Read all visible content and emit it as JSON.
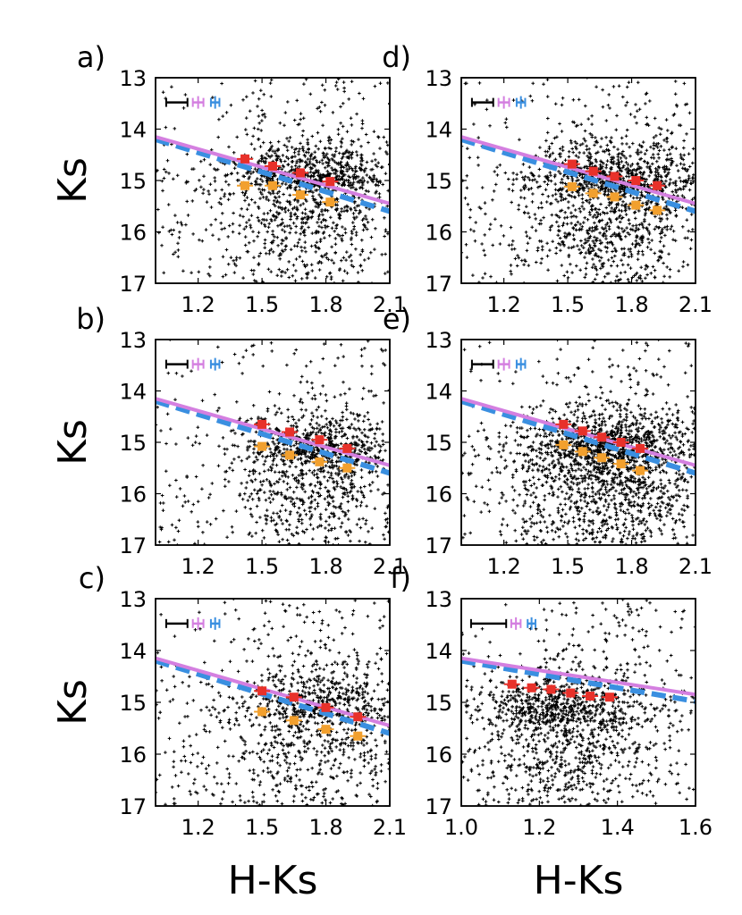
{
  "figure": {
    "xlabel": "H-Ks",
    "ylabel": "Ks",
    "colors": {
      "background_stars": "#000000",
      "solid_line": "#d47fe0",
      "dashed_line": "#3a8fe0",
      "upper_points": "#e8312a",
      "lower_points": "#f2a02e"
    }
  },
  "chart_data": [
    {
      "type": "scatter",
      "panel": "a)",
      "xlim": [
        1.0,
        2.1
      ],
      "ylim": [
        17,
        13
      ],
      "xticks": [
        "1.2",
        "1.5",
        "1.8",
        "2.1"
      ],
      "xtick_values": [
        1.2,
        1.5,
        1.8,
        2.1
      ],
      "yticks": [
        "13",
        "14",
        "15",
        "16",
        "17"
      ],
      "ytick_values": [
        13,
        14,
        15,
        16,
        17
      ],
      "show_x_title": false,
      "show_y_title": true,
      "solid_line": [
        [
          1.0,
          14.15
        ],
        [
          2.1,
          15.45
        ]
      ],
      "dashed_line": [
        [
          1.0,
          14.2
        ],
        [
          2.1,
          15.6
        ]
      ],
      "upper_points": {
        "x": [
          1.42,
          1.55,
          1.68,
          1.82
        ],
        "y": [
          14.58,
          14.72,
          14.85,
          15.02
        ]
      },
      "lower_points": {
        "x": [
          1.42,
          1.55,
          1.68,
          1.82
        ],
        "y": [
          15.1,
          15.1,
          15.28,
          15.42
        ]
      },
      "error_bars": [
        {
          "x": 1.1,
          "half_width": 0.05
        },
        {
          "x": 1.2,
          "half_width": 0.025
        },
        {
          "x": 1.28,
          "half_width": 0.02
        }
      ],
      "cloud": {
        "cx": 1.72,
        "cy": 15.1,
        "sx": 0.2,
        "sy": 0.7,
        "n": 1100,
        "n_bg": 350
      }
    },
    {
      "type": "scatter",
      "panel": "d)",
      "xlim": [
        1.0,
        2.1
      ],
      "ylim": [
        17,
        13
      ],
      "xticks": [
        "1.2",
        "1.5",
        "1.8",
        "2.1"
      ],
      "xtick_values": [
        1.2,
        1.5,
        1.8,
        2.1
      ],
      "yticks": [
        "13",
        "14",
        "15",
        "16",
        "17"
      ],
      "ytick_values": [
        13,
        14,
        15,
        16,
        17
      ],
      "show_x_title": false,
      "show_y_title": false,
      "solid_line": [
        [
          1.0,
          14.15
        ],
        [
          2.1,
          15.45
        ]
      ],
      "dashed_line": [
        [
          1.0,
          14.2
        ],
        [
          2.1,
          15.6
        ]
      ],
      "upper_points": {
        "x": [
          1.52,
          1.62,
          1.72,
          1.82,
          1.92
        ],
        "y": [
          14.68,
          14.82,
          14.92,
          15.0,
          15.1
        ]
      },
      "lower_points": {
        "x": [
          1.52,
          1.62,
          1.72,
          1.82,
          1.92
        ],
        "y": [
          15.12,
          15.25,
          15.32,
          15.48,
          15.58
        ]
      },
      "error_bars": [
        {
          "x": 1.1,
          "half_width": 0.05
        },
        {
          "x": 1.2,
          "half_width": 0.025
        },
        {
          "x": 1.28,
          "half_width": 0.02
        }
      ],
      "cloud": {
        "cx": 1.72,
        "cy": 15.2,
        "sx": 0.2,
        "sy": 0.75,
        "n": 1300,
        "n_bg": 350
      }
    },
    {
      "type": "scatter",
      "panel": "b)",
      "xlim": [
        1.0,
        2.1
      ],
      "ylim": [
        17,
        13
      ],
      "xticks": [
        "1.2",
        "1.5",
        "1.8",
        "2.1"
      ],
      "xtick_values": [
        1.2,
        1.5,
        1.8,
        2.1
      ],
      "yticks": [
        "13",
        "14",
        "15",
        "16",
        "17"
      ],
      "ytick_values": [
        13,
        14,
        15,
        16,
        17
      ],
      "show_x_title": false,
      "show_y_title": true,
      "solid_line": [
        [
          1.0,
          14.15
        ],
        [
          2.1,
          15.45
        ]
      ],
      "dashed_line": [
        [
          1.0,
          14.2
        ],
        [
          2.1,
          15.6
        ]
      ],
      "upper_points": {
        "x": [
          1.5,
          1.63,
          1.77,
          1.9
        ],
        "y": [
          14.65,
          14.8,
          14.95,
          15.12
        ]
      },
      "lower_points": {
        "x": [
          1.5,
          1.63,
          1.77,
          1.9
        ],
        "y": [
          15.08,
          15.25,
          15.38,
          15.5
        ]
      },
      "error_bars": [
        {
          "x": 1.1,
          "half_width": 0.05
        },
        {
          "x": 1.2,
          "half_width": 0.025
        },
        {
          "x": 1.28,
          "half_width": 0.02
        }
      ],
      "cloud": {
        "cx": 1.75,
        "cy": 15.3,
        "sx": 0.18,
        "sy": 0.75,
        "n": 1000,
        "n_bg": 300
      }
    },
    {
      "type": "scatter",
      "panel": "e)",
      "xlim": [
        1.0,
        2.1
      ],
      "ylim": [
        17,
        13
      ],
      "xticks": [
        "1.2",
        "1.5",
        "1.8",
        "2.1"
      ],
      "xtick_values": [
        1.2,
        1.5,
        1.8,
        2.1
      ],
      "yticks": [
        "13",
        "14",
        "15",
        "16",
        "17"
      ],
      "ytick_values": [
        13,
        14,
        15,
        16,
        17
      ],
      "show_x_title": false,
      "show_y_title": false,
      "solid_line": [
        [
          1.0,
          14.15
        ],
        [
          2.1,
          15.45
        ]
      ],
      "dashed_line": [
        [
          1.0,
          14.2
        ],
        [
          2.1,
          15.6
        ]
      ],
      "upper_points": {
        "x": [
          1.48,
          1.57,
          1.66,
          1.75,
          1.84
        ],
        "y": [
          14.65,
          14.78,
          14.9,
          15.0,
          15.12
        ]
      },
      "lower_points": {
        "x": [
          1.48,
          1.57,
          1.66,
          1.75,
          1.84
        ],
        "y": [
          15.05,
          15.18,
          15.3,
          15.42,
          15.55
        ]
      },
      "error_bars": [
        {
          "x": 1.1,
          "half_width": 0.05
        },
        {
          "x": 1.2,
          "half_width": 0.025
        },
        {
          "x": 1.28,
          "half_width": 0.02
        }
      ],
      "cloud": {
        "cx": 1.7,
        "cy": 15.3,
        "sx": 0.22,
        "sy": 0.8,
        "n": 1700,
        "n_bg": 350
      }
    },
    {
      "type": "scatter",
      "panel": "c)",
      "xlim": [
        1.0,
        2.1
      ],
      "ylim": [
        17,
        13
      ],
      "xticks": [
        "1.2",
        "1.5",
        "1.8",
        "2.1"
      ],
      "xtick_values": [
        1.2,
        1.5,
        1.8,
        2.1
      ],
      "yticks": [
        "13",
        "14",
        "15",
        "16",
        "17"
      ],
      "ytick_values": [
        13,
        14,
        15,
        16,
        17
      ],
      "show_x_title": true,
      "show_y_title": true,
      "solid_line": [
        [
          1.0,
          14.15
        ],
        [
          2.1,
          15.45
        ]
      ],
      "dashed_line": [
        [
          1.0,
          14.2
        ],
        [
          2.1,
          15.6
        ]
      ],
      "upper_points": {
        "x": [
          1.5,
          1.65,
          1.8,
          1.95
        ],
        "y": [
          14.78,
          14.9,
          15.1,
          15.28
        ]
      },
      "lower_points": {
        "x": [
          1.5,
          1.65,
          1.8,
          1.95
        ],
        "y": [
          15.18,
          15.35,
          15.52,
          15.65
        ]
      },
      "error_bars": [
        {
          "x": 1.1,
          "half_width": 0.05
        },
        {
          "x": 1.2,
          "half_width": 0.025
        },
        {
          "x": 1.28,
          "half_width": 0.02
        }
      ],
      "cloud": {
        "cx": 1.75,
        "cy": 15.3,
        "sx": 0.22,
        "sy": 0.8,
        "n": 900,
        "n_bg": 350
      }
    },
    {
      "type": "scatter",
      "panel": "f)",
      "xlim": [
        1.0,
        1.6
      ],
      "ylim": [
        17,
        13
      ],
      "xticks": [
        "1.0",
        "1.2",
        "1.4",
        "1.6"
      ],
      "xtick_values": [
        1.0,
        1.2,
        1.4,
        1.6
      ],
      "yticks": [
        "13",
        "14",
        "15",
        "16",
        "17"
      ],
      "ytick_values": [
        13,
        14,
        15,
        16,
        17
      ],
      "show_x_title": true,
      "show_y_title": false,
      "solid_line": [
        [
          1.0,
          14.15
        ],
        [
          1.6,
          14.85
        ]
      ],
      "dashed_line": [
        [
          1.0,
          14.2
        ],
        [
          1.6,
          14.98
        ]
      ],
      "upper_points": {
        "x": [
          1.13,
          1.18,
          1.23,
          1.28,
          1.33,
          1.38
        ],
        "y": [
          14.65,
          14.72,
          14.75,
          14.82,
          14.88,
          14.9
        ]
      },
      "lower_points": {
        "x": [],
        "y": []
      },
      "error_bars": [
        {
          "x": 1.07,
          "half_width": 0.045
        },
        {
          "x": 1.14,
          "half_width": 0.012
        },
        {
          "x": 1.18,
          "half_width": 0.01
        }
      ],
      "cloud": {
        "cx": 1.27,
        "cy": 15.4,
        "sx": 0.12,
        "sy": 0.85,
        "n": 1200,
        "n_bg": 350
      }
    }
  ]
}
